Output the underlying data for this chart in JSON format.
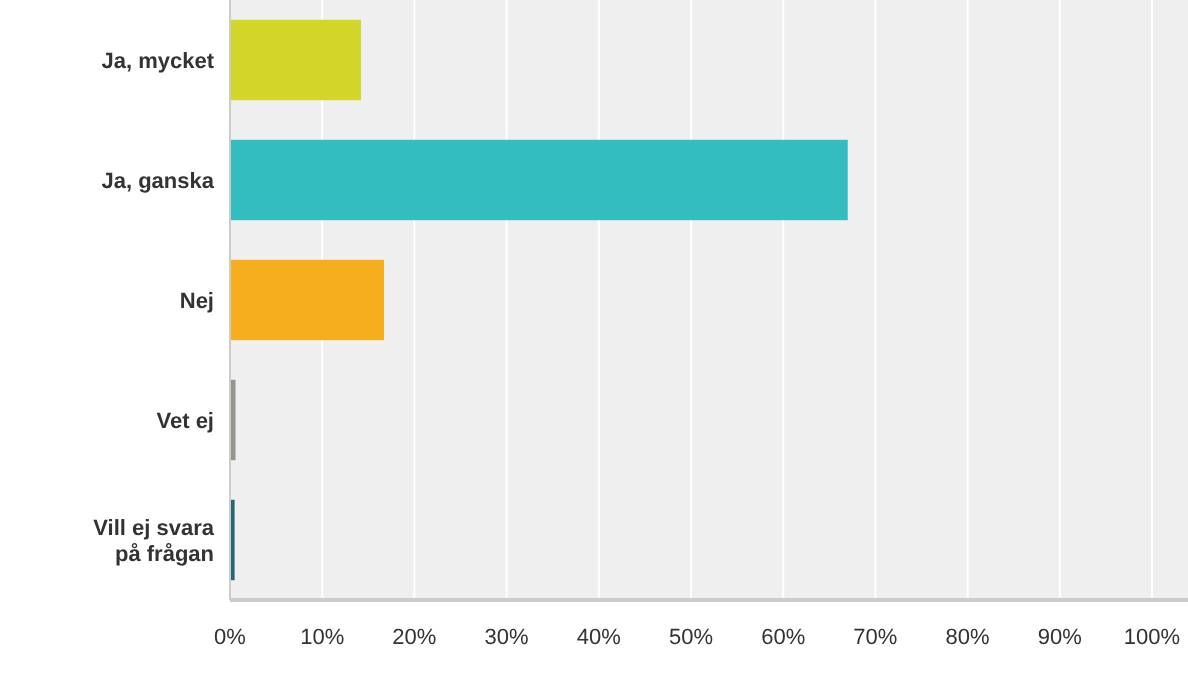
{
  "chart_data": {
    "type": "bar",
    "orientation": "horizontal",
    "categories": [
      "Ja, mycket",
      "Ja, ganska",
      "Nej",
      "Vet ej",
      "Vill ej svara\npå frågan"
    ],
    "values": [
      14.2,
      67,
      16.7,
      0.6,
      0.5
    ],
    "colors": [
      "#d1d628",
      "#33bdbf",
      "#f6ae1e",
      "#95958a",
      "#2b6675"
    ],
    "xlim": [
      0,
      100
    ],
    "xticks": [
      {
        "value": 0,
        "label": "0%"
      },
      {
        "value": 10,
        "label": "10%"
      },
      {
        "value": 20,
        "label": "20%"
      },
      {
        "value": 30,
        "label": "30%"
      },
      {
        "value": 40,
        "label": "40%"
      },
      {
        "value": 50,
        "label": "50%"
      },
      {
        "value": 60,
        "label": "60%"
      },
      {
        "value": 70,
        "label": "70%"
      },
      {
        "value": 80,
        "label": "80%"
      },
      {
        "value": 90,
        "label": "90%"
      },
      {
        "value": 100,
        "label": "100%"
      }
    ],
    "grid": "x"
  }
}
